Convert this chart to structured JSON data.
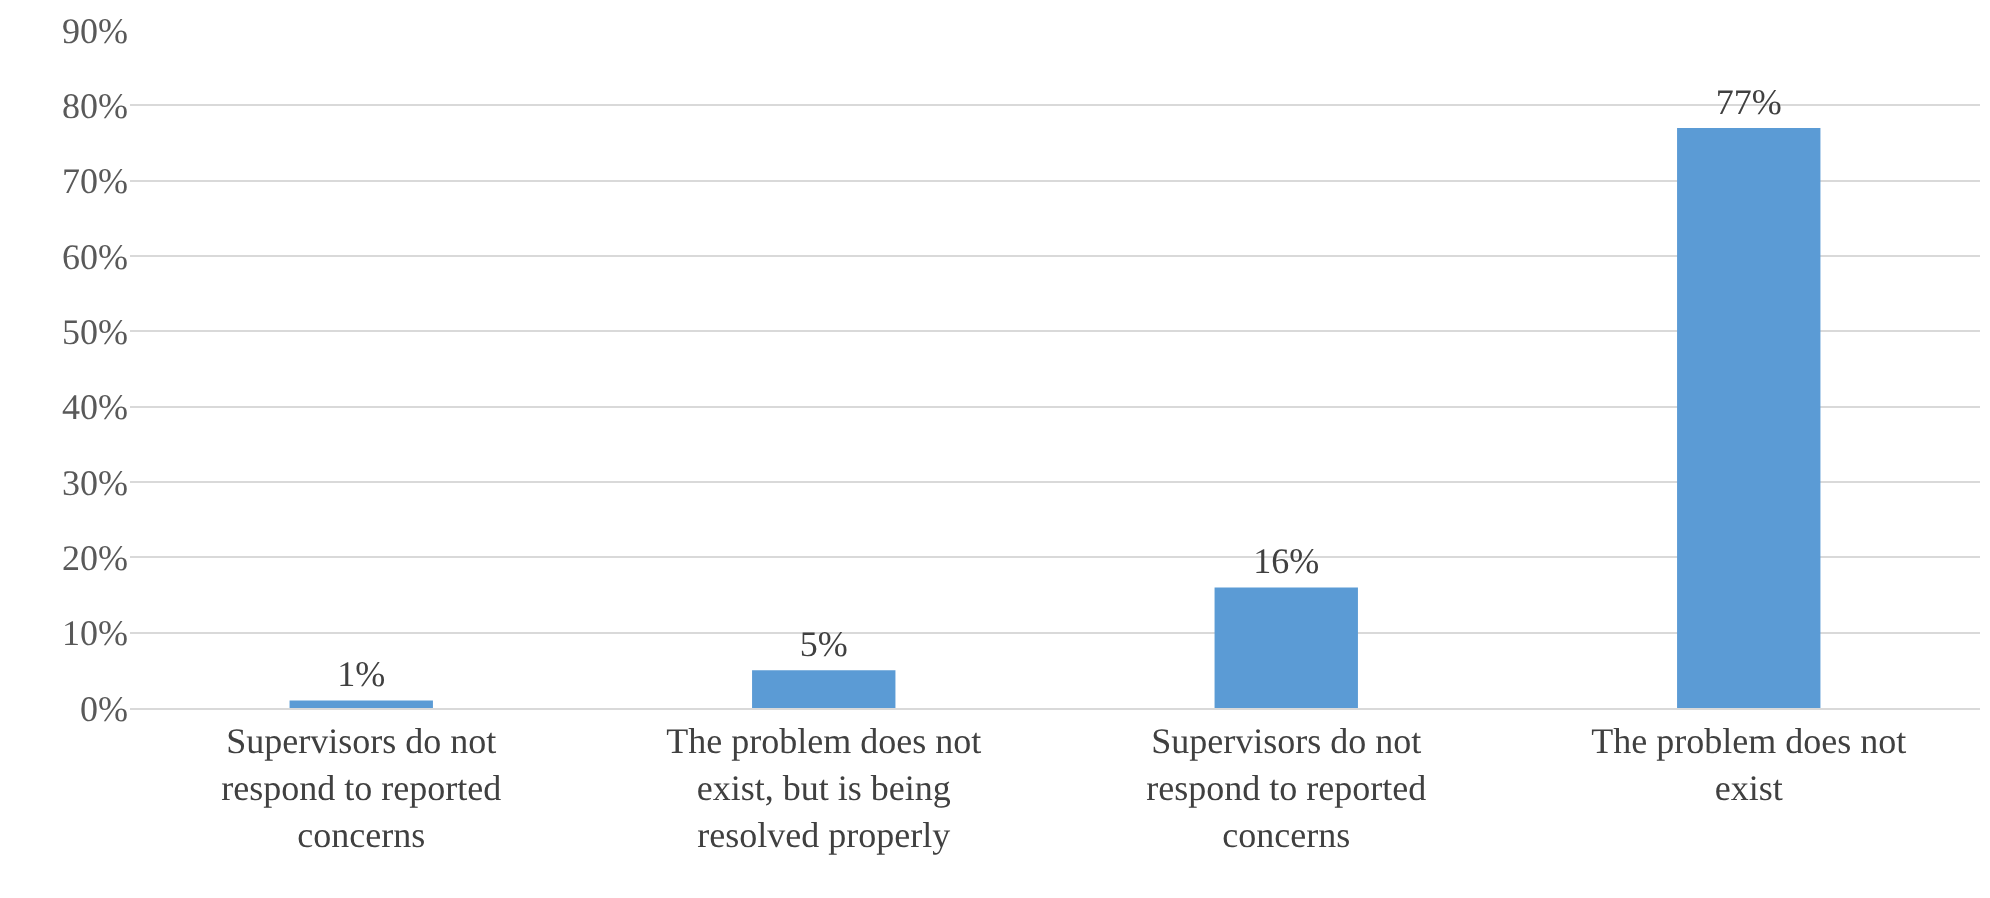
{
  "chart_data": {
    "type": "bar",
    "categories": [
      "Supervisors do not respond to reported concerns",
      "The problem does not exist, but is being resolved properly",
      "Supervisors do not respond to reported concerns",
      "The problem does not exist"
    ],
    "values": [
      1,
      5,
      16,
      77
    ],
    "value_labels": [
      "1%",
      "5%",
      "16%",
      "77%"
    ],
    "color": "#5b9bd5",
    "ylim": [
      0,
      90
    ],
    "yticks": [
      {
        "value": 0,
        "label": "0%"
      },
      {
        "value": 10,
        "label": "10%"
      },
      {
        "value": 20,
        "label": "20%"
      },
      {
        "value": 30,
        "label": "30%"
      },
      {
        "value": 40,
        "label": "40%"
      },
      {
        "value": 50,
        "label": "50%"
      },
      {
        "value": 60,
        "label": "60%"
      },
      {
        "value": 70,
        "label": "70%"
      },
      {
        "value": 80,
        "label": "80%"
      },
      {
        "value": 90,
        "label": "90%"
      }
    ],
    "grid": "y"
  }
}
